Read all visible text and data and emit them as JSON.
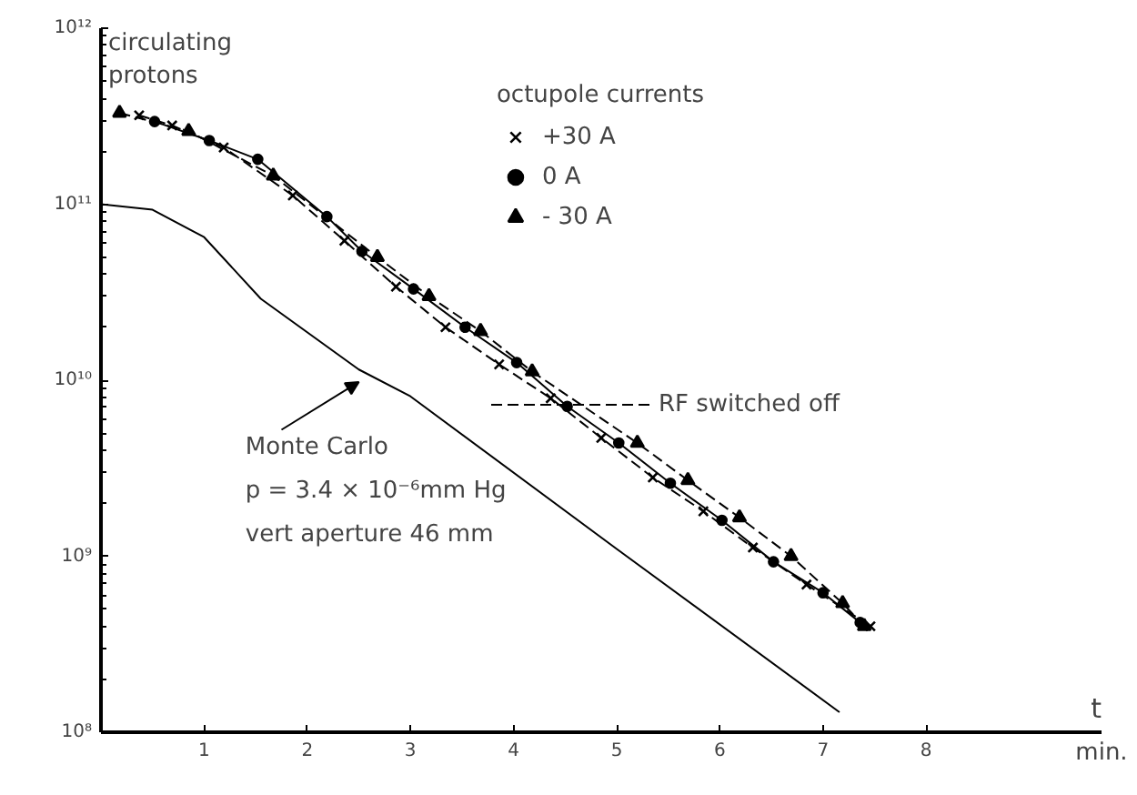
{
  "chart_data": {
    "type": "line",
    "ylabel": "circulating protons",
    "xlabel": "min.",
    "legend_title": "octupole currents",
    "log": "y",
    "xlim": [
      0,
      9.7
    ],
    "ylim": [
      100000000.0,
      1000000000000.0
    ],
    "xticks": [
      1,
      2,
      3,
      4,
      5,
      6,
      7,
      8
    ],
    "yticks": [
      {
        "value": 100000000.0,
        "label": "10⁸"
      },
      {
        "value": 1000000000.0,
        "label": "10⁹"
      },
      {
        "value": 10000000000.0,
        "label": "10¹⁰"
      },
      {
        "value": 100000000000.0,
        "label": "10¹¹"
      },
      {
        "value": 1000000000000.0,
        "label": "10¹²"
      }
    ],
    "grid": false,
    "legend": "top",
    "series": [
      {
        "name": "+30 A",
        "color": "#000000",
        "marker": "cross",
        "line_style": "dashed",
        "x": [
          0.37,
          0.69,
          1.19,
          1.86,
          2.36,
          2.86,
          3.34,
          3.86,
          4.36,
          4.85,
          5.35,
          5.84,
          6.32,
          6.84,
          7.46
        ],
        "values": [
          320000000000.0,
          280000000000.0,
          210000000000.0,
          112000000000.0,
          62000000000.0,
          34000000000.0,
          20000000000.0,
          12300000000.0,
          7900000000.0,
          4700000000.0,
          2800000000.0,
          1800000000.0,
          1120000000.0,
          690000000.0,
          400000000.0
        ]
      },
      {
        "name": "0 A",
        "color": "#000000",
        "marker": "circle",
        "line_style": "solid",
        "x": [
          0.52,
          1.05,
          1.52,
          2.19,
          2.53,
          3.03,
          3.53,
          4.03,
          4.52,
          5.02,
          5.52,
          6.02,
          6.52,
          7.0,
          7.36
        ],
        "values": [
          295000000000.0,
          230000000000.0,
          180000000000.0,
          85000000000.0,
          54000000000.0,
          33000000000.0,
          20000000000.0,
          12600000000.0,
          7100000000.0,
          4400000000.0,
          2600000000.0,
          1600000000.0,
          930000000.0,
          620000000.0,
          420000000.0
        ]
      },
      {
        "name": "- 30 A",
        "color": "#000000",
        "marker": "triangle",
        "line_style": "dashed",
        "x": [
          0.18,
          0.85,
          1.67,
          2.68,
          3.18,
          3.68,
          4.18,
          5.2,
          5.69,
          6.19,
          6.69,
          7.19,
          7.4
        ],
        "values": [
          330000000000.0,
          260000000000.0,
          145000000000.0,
          50000000000.0,
          30000000000.0,
          19000000000.0,
          11200000000.0,
          4400000000.0,
          2700000000.0,
          1660000000.0,
          1000000000.0,
          540000000.0,
          400000000.0
        ]
      },
      {
        "name": "Monte Carlo",
        "color": "#000000",
        "marker": "none",
        "line_style": "solid",
        "x": [
          0,
          0.5,
          1,
          1.55,
          2.5,
          3,
          5,
          7.16
        ],
        "values": [
          100000000000.0,
          93000000000.0,
          65000000000.0,
          29000000000.0,
          11500000000.0,
          8100000000.0,
          1100000000.0,
          130000000.0
        ]
      }
    ],
    "annotations": [
      "RF switched off",
      "p = 3.4 × 10⁻⁶mm Hg",
      "vert aperture 46 mm",
      "t"
    ]
  }
}
